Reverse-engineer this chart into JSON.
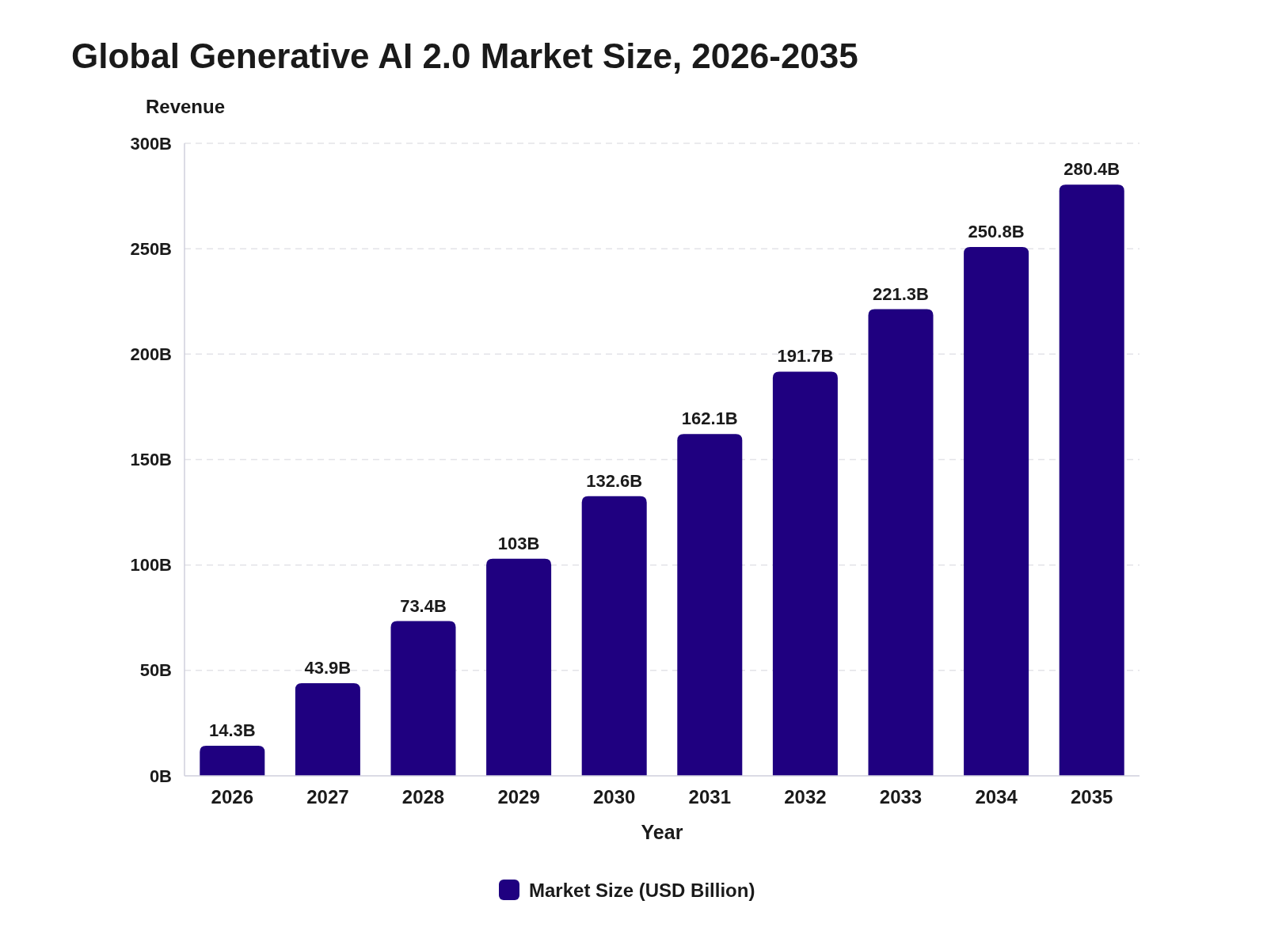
{
  "chart_data": {
    "type": "bar",
    "title": "Global Generative AI 2.0 Market Size, 2026-2035",
    "xlabel": "Year",
    "ylabel": "Revenue",
    "categories": [
      "2026",
      "2027",
      "2028",
      "2029",
      "2030",
      "2031",
      "2032",
      "2033",
      "2034",
      "2035"
    ],
    "series": [
      {
        "name": "Market Size (USD Billion)",
        "color": "#1f0080",
        "values": [
          14.3,
          43.9,
          73.4,
          103,
          132.6,
          162.1,
          191.7,
          221.3,
          250.8,
          280.4
        ],
        "value_labels": [
          "14.3B",
          "43.9B",
          "73.4B",
          "103B",
          "132.6B",
          "162.1B",
          "191.7B",
          "221.3B",
          "250.8B",
          "280.4B"
        ]
      }
    ],
    "ylim": [
      0,
      300
    ],
    "yticks": [
      {
        "value": 0,
        "label": "0B"
      },
      {
        "value": 50,
        "label": "50B"
      },
      {
        "value": 100,
        "label": "100B"
      },
      {
        "value": 150,
        "label": "150B"
      },
      {
        "value": 200,
        "label": "200B"
      },
      {
        "value": 250,
        "label": "250B"
      },
      {
        "value": 300,
        "label": "300B"
      }
    ],
    "grid": "y",
    "legend": "bottom"
  }
}
